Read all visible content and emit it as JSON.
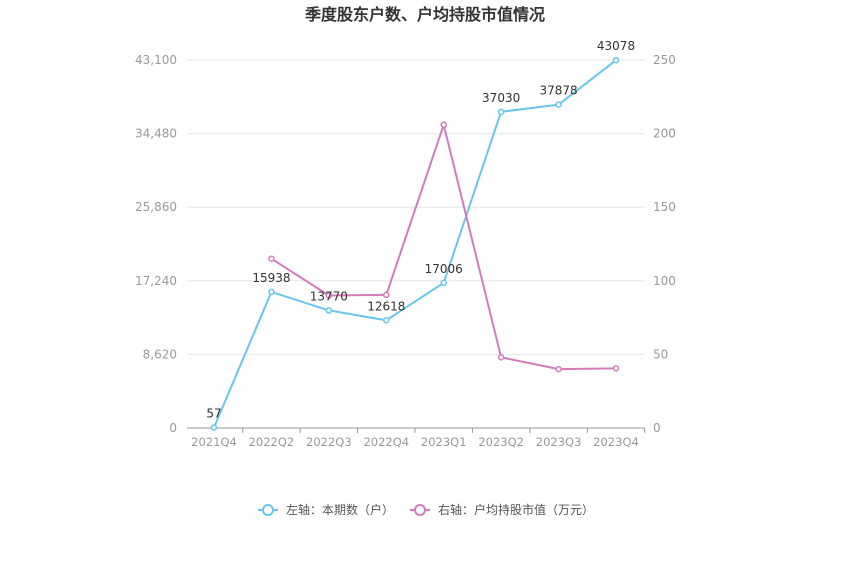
{
  "chart_data": {
    "type": "line",
    "title": "季度股东户数、户均持股市值情况",
    "categories": [
      "2021Q4",
      "2022Q2",
      "2022Q3",
      "2022Q4",
      "2023Q1",
      "2023Q2",
      "2023Q3",
      "2023Q4"
    ],
    "left_axis": {
      "ylim": [
        0,
        43100
      ],
      "ticks": [
        "0",
        "8,620",
        "17,240",
        "25,860",
        "34,480",
        "43,100"
      ]
    },
    "right_axis": {
      "ylim": [
        0,
        250
      ],
      "ticks": [
        "0",
        "50",
        "100",
        "150",
        "200",
        "250"
      ]
    },
    "series": [
      {
        "name": "左轴：本期数（户）",
        "axis": "left",
        "color": "#6ac5ef",
        "values": [
          57,
          15938,
          13770,
          12618,
          17006,
          37030,
          37878,
          43078
        ],
        "labels": [
          "57",
          "15938",
          "13770",
          "12618",
          "17006",
          "37030",
          "37878",
          "43078"
        ]
      },
      {
        "name": "右轴：户均持股市值（万元）",
        "axis": "right",
        "color": "#d47bbf",
        "values": [
          null,
          115,
          90,
          90.5,
          206,
          48,
          40,
          40.5
        ]
      }
    ],
    "grid": true,
    "legend_position": "bottom"
  }
}
